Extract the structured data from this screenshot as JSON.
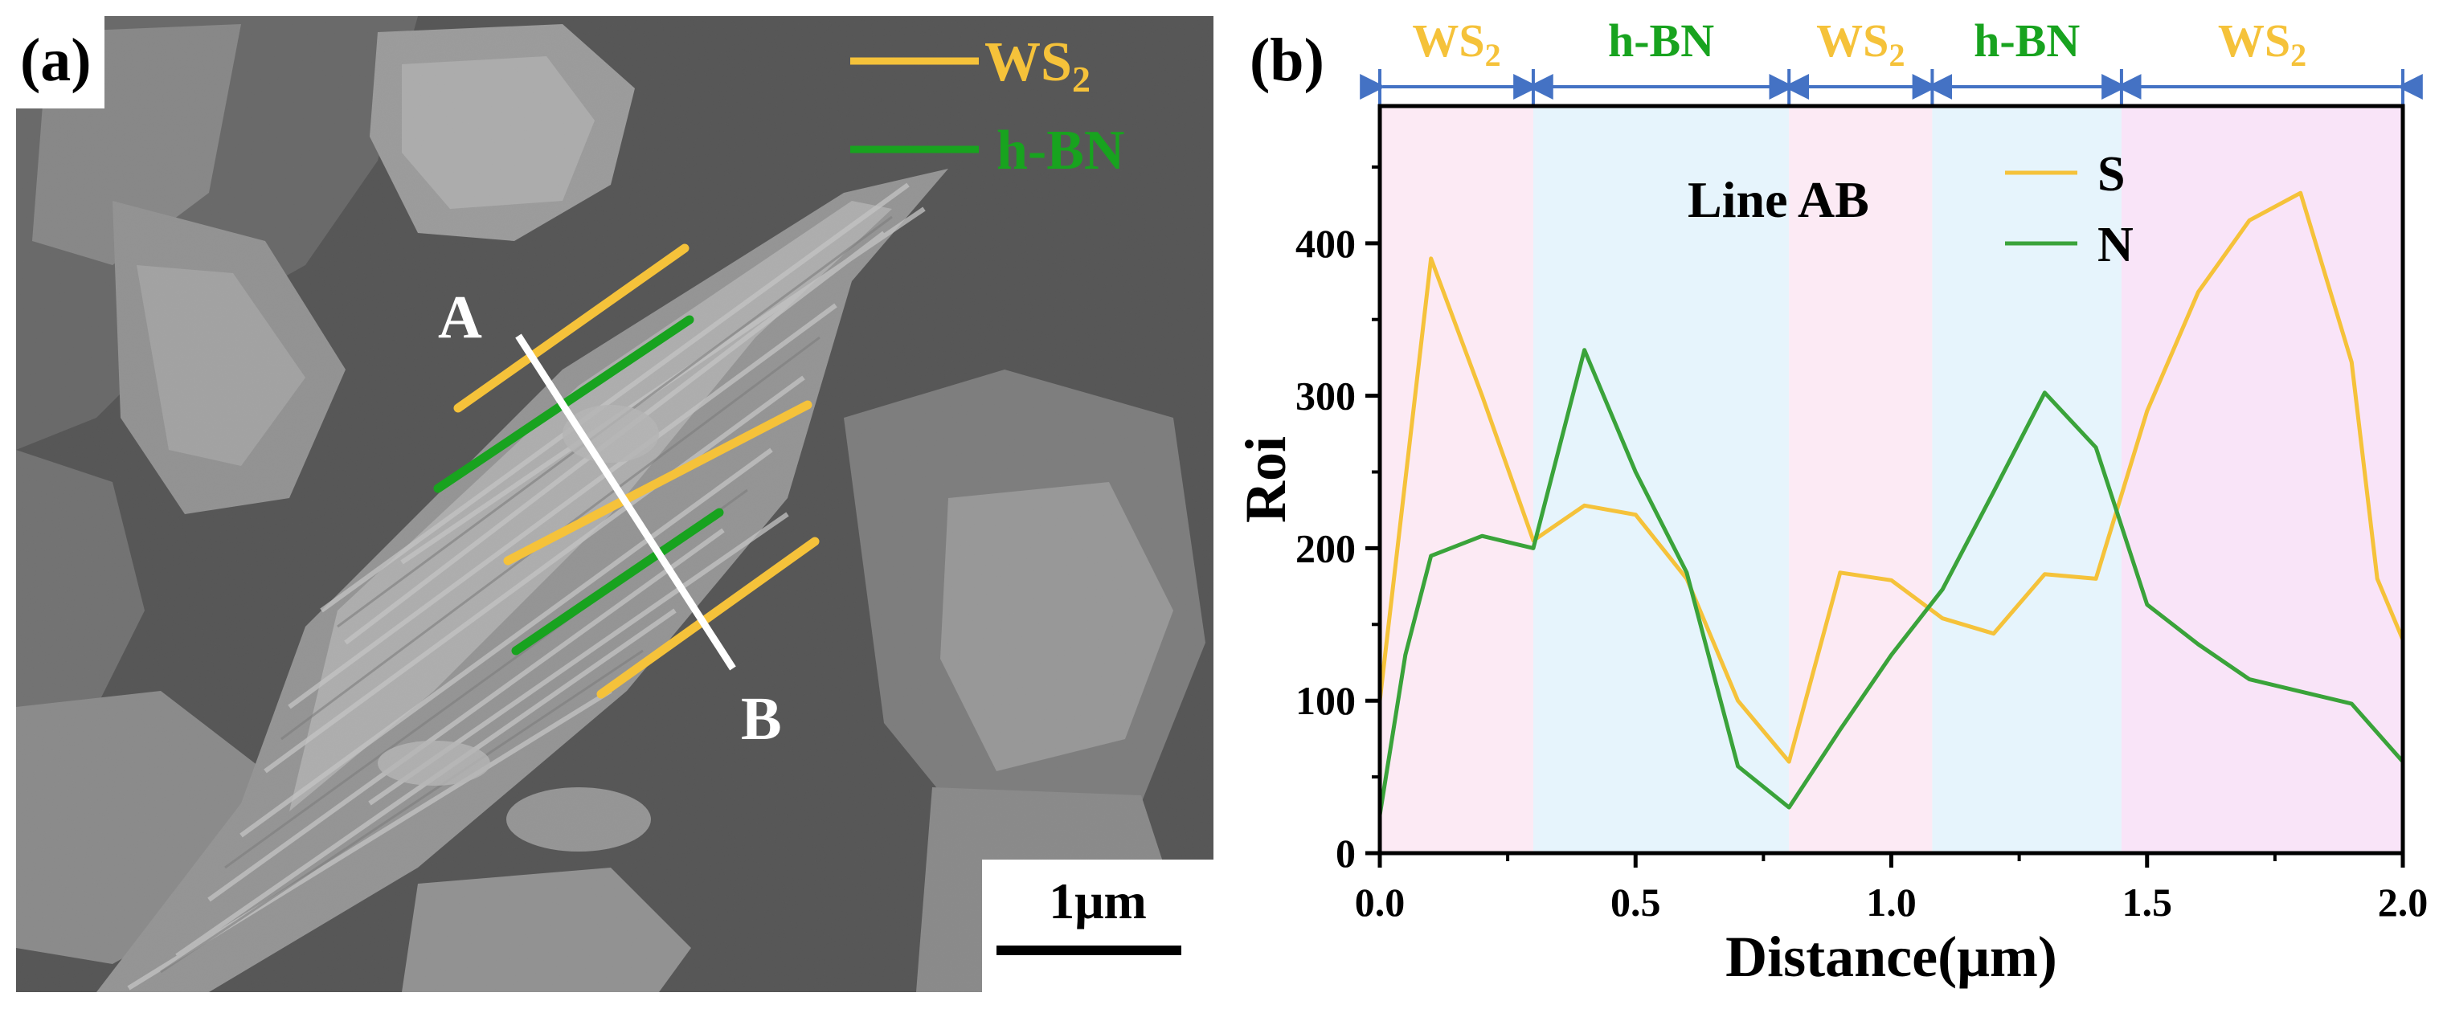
{
  "panel_a": {
    "label": "(a)",
    "legend": [
      {
        "name": "WS",
        "sub": "2",
        "color": "#F5C23A"
      },
      {
        "name": "h-BN",
        "sub": "",
        "color": "#18A31F"
      }
    ],
    "point_a": "A",
    "point_b": "B",
    "scale_bar": "1μm"
  },
  "panel_b": {
    "label": "(b)",
    "regions": [
      {
        "name": "WS",
        "sub": "2",
        "text_color": "#F5C23A",
        "fill": "#FCEAF4",
        "x0": 0.0,
        "x1": 0.3
      },
      {
        "name": "h-BN",
        "sub": "",
        "text_color": "#18A31F",
        "fill": "#E6F4FC",
        "x0": 0.3,
        "x1": 0.8
      },
      {
        "name": "WS",
        "sub": "2",
        "text_color": "#F5C23A",
        "fill": "#FCEAF4",
        "x0": 0.8,
        "x1": 1.08
      },
      {
        "name": "h-BN",
        "sub": "",
        "text_color": "#18A31F",
        "fill": "#E6F4FC",
        "x0": 1.08,
        "x1": 1.45
      },
      {
        "name": "WS",
        "sub": "2",
        "text_color": "#F5C23A",
        "fill": "#F9E4F8",
        "x0": 1.45,
        "x1": 2.0
      }
    ],
    "arrow_color": "#4472C4"
  },
  "chart_data": {
    "type": "line",
    "title": "Line AB",
    "xlabel": "Distance(μm)",
    "ylabel": "Roi",
    "xlim": [
      0.0,
      2.0
    ],
    "ylim": [
      0,
      490
    ],
    "xticks": [
      0.0,
      0.5,
      1.0,
      1.5,
      2.0
    ],
    "xtick_labels": [
      "0.0",
      "0.5",
      "1.0",
      "1.5",
      "2.0"
    ],
    "yticks": [
      0,
      100,
      200,
      300,
      400
    ],
    "ytick_labels": [
      "0",
      "100",
      "200",
      "300",
      "400"
    ],
    "grid": false,
    "legend_position": "top-right",
    "series": [
      {
        "name": "S",
        "color": "#F5C23A",
        "x": [
          0.0,
          0.1,
          0.2,
          0.3,
          0.4,
          0.5,
          0.6,
          0.7,
          0.8,
          0.9,
          1.0,
          1.1,
          1.2,
          1.3,
          1.4,
          1.5,
          1.6,
          1.7,
          1.8,
          1.9,
          1.95,
          2.0
        ],
        "y": [
          100,
          390,
          300,
          205,
          228,
          222,
          180,
          100,
          60,
          184,
          179,
          154,
          144,
          183,
          180,
          290,
          368,
          415,
          433,
          322,
          180,
          140
        ]
      },
      {
        "name": "N",
        "color": "#3AA33A",
        "x": [
          0.0,
          0.05,
          0.1,
          0.2,
          0.3,
          0.4,
          0.5,
          0.6,
          0.7,
          0.8,
          0.9,
          1.0,
          1.1,
          1.2,
          1.3,
          1.4,
          1.5,
          1.6,
          1.7,
          1.8,
          1.9,
          2.0
        ],
        "y": [
          25,
          130,
          195,
          208,
          200,
          330,
          250,
          184,
          57,
          30,
          81,
          130,
          173,
          237,
          302,
          266,
          163,
          137,
          114,
          106,
          98,
          60
        ]
      }
    ]
  }
}
